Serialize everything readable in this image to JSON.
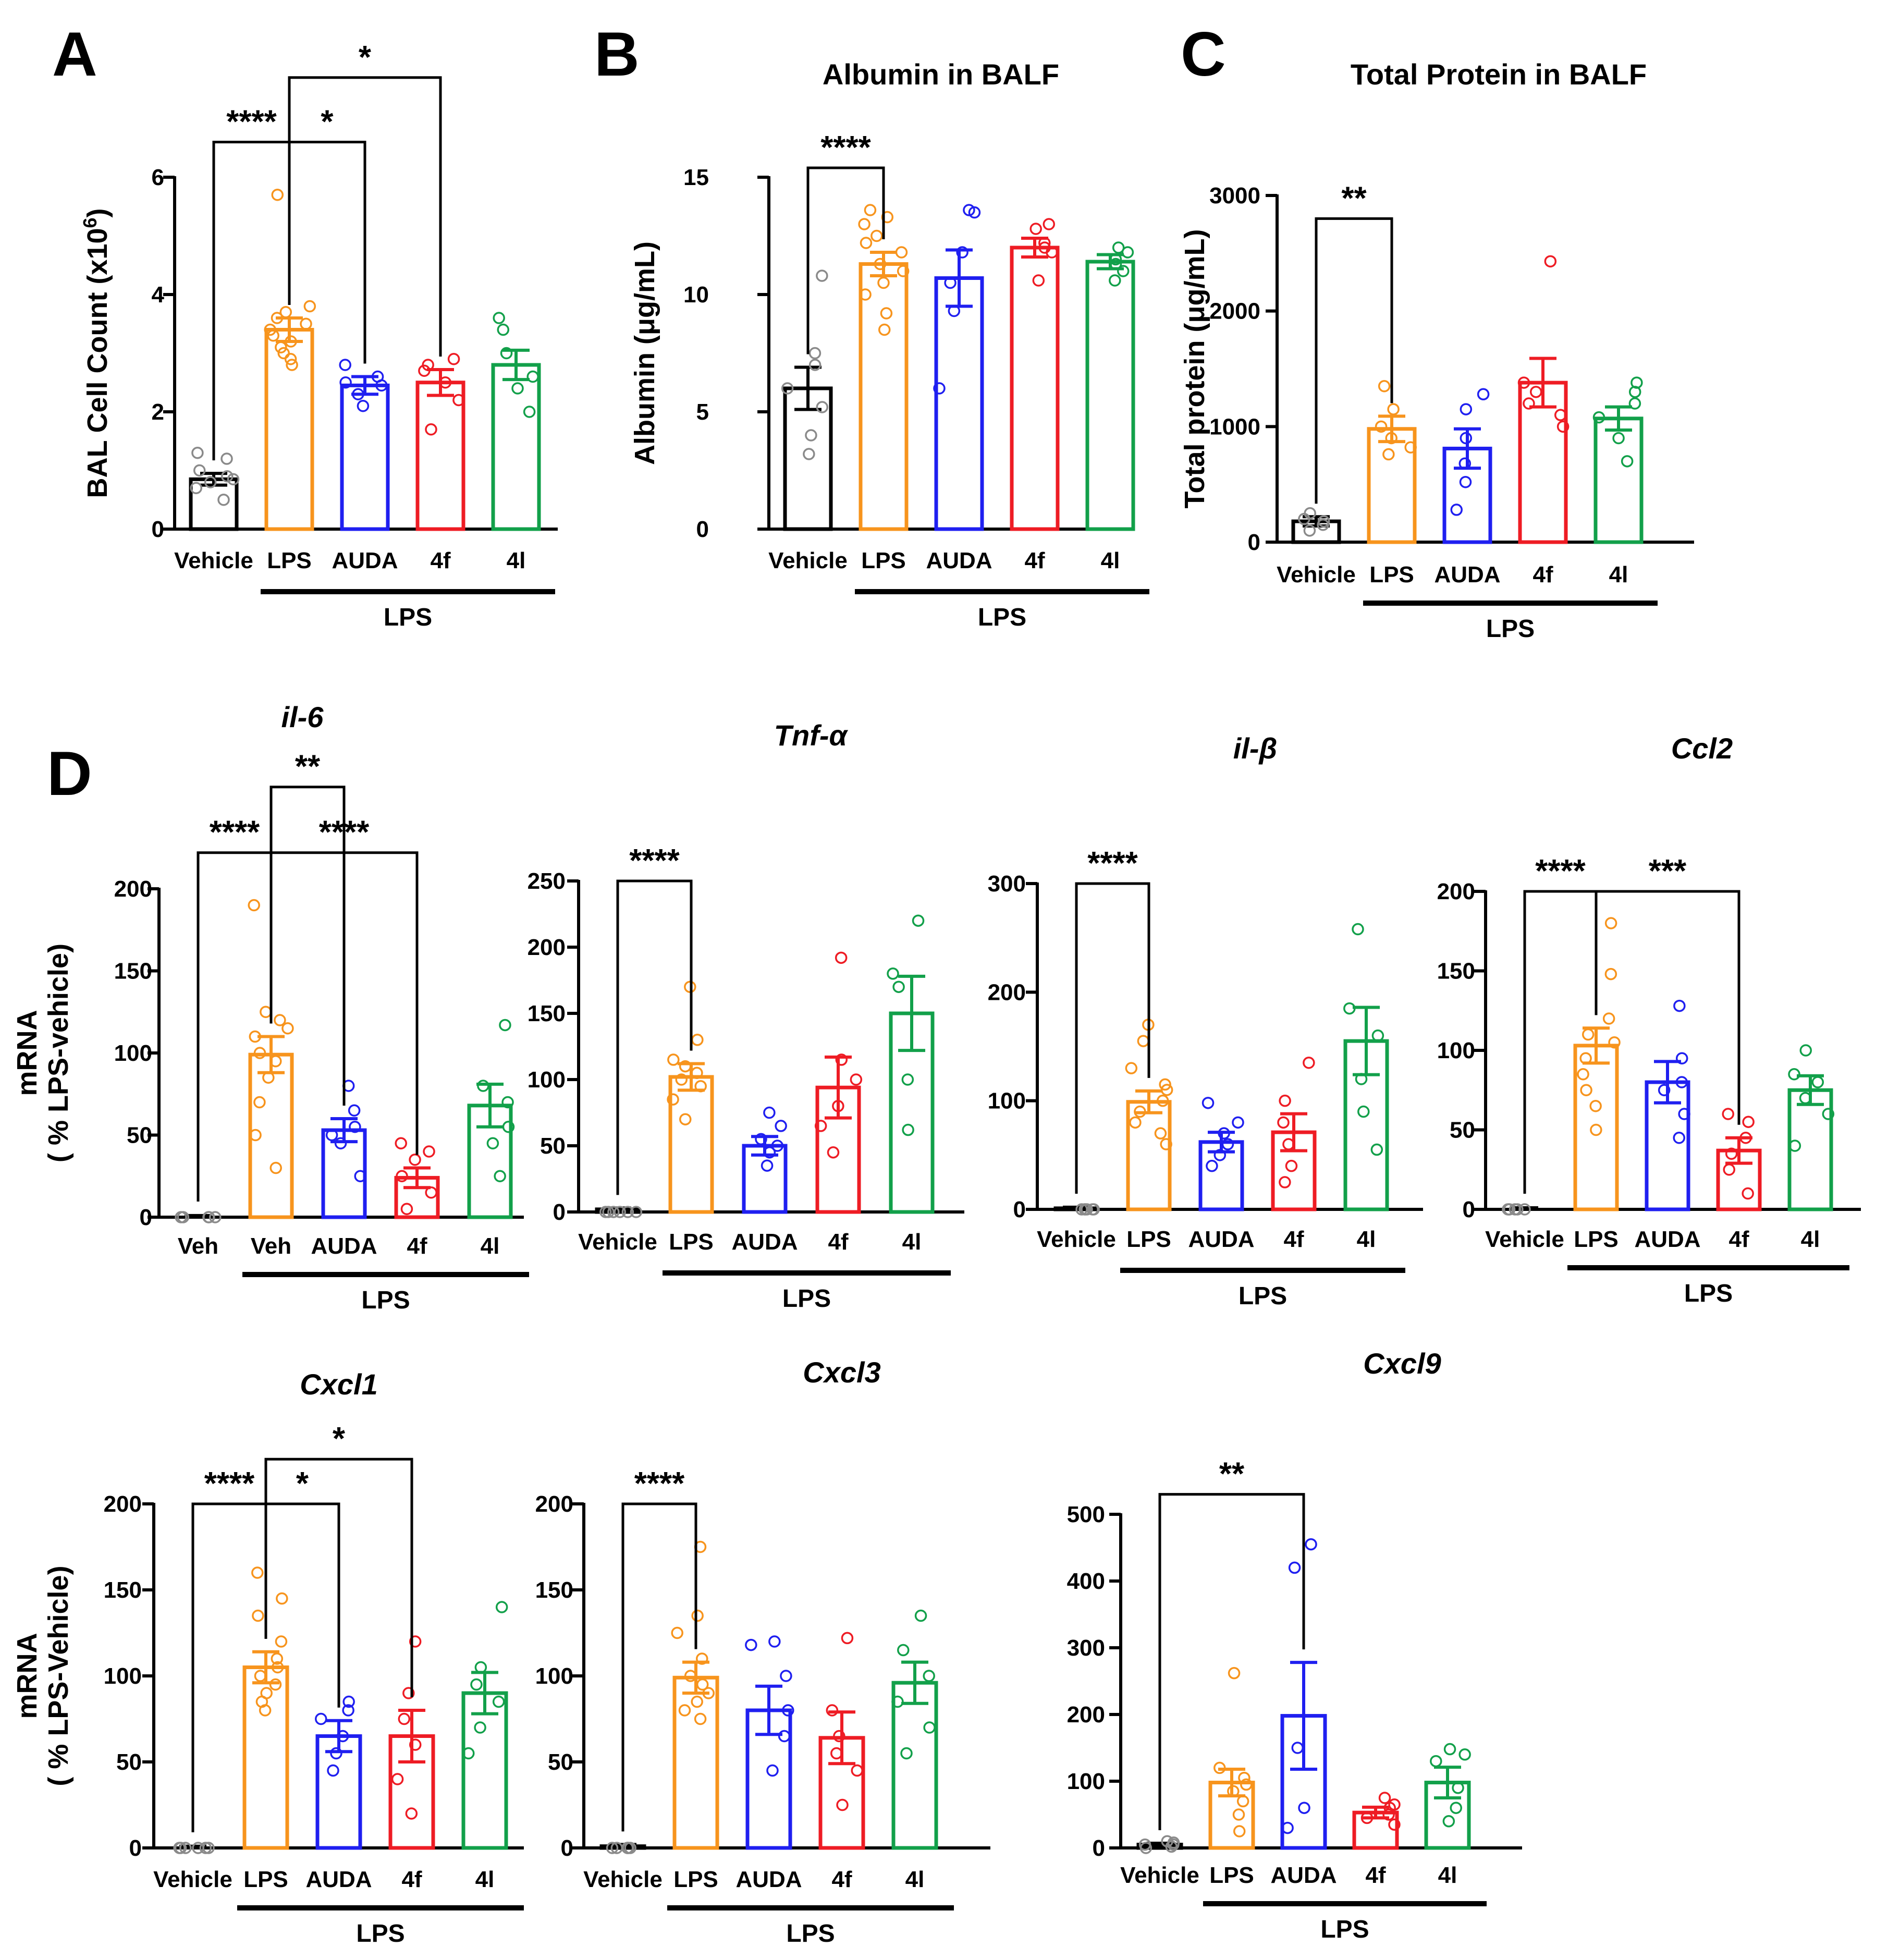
{
  "chart_data": [
    {
      "id": "A",
      "panel_letter": "A",
      "type": "bar",
      "title": "",
      "ylabel": "BAL Cell Count (x10",
      "ylabel_sup": "6",
      "ylabel_close": ")",
      "ylim": [
        0,
        6
      ],
      "yticks": [
        "0",
        "2",
        "4",
        "6"
      ],
      "categories": [
        "Vehicle",
        "LPS",
        "AUDA",
        "4f",
        "4l"
      ],
      "group_label": "LPS",
      "values": [
        0.85,
        3.4,
        2.45,
        2.5,
        2.8
      ],
      "sem": [
        0.1,
        0.2,
        0.15,
        0.22,
        0.25
      ],
      "points": [
        [
          0.5,
          0.7,
          0.8,
          0.9,
          1.0,
          1.2,
          1.3,
          0.85
        ],
        [
          2.8,
          3.0,
          3.1,
          3.2,
          3.3,
          3.4,
          3.5,
          3.6,
          3.7,
          3.8,
          5.7,
          2.9
        ],
        [
          2.1,
          2.3,
          2.45,
          2.5,
          2.6,
          2.8
        ],
        [
          1.7,
          2.2,
          2.5,
          2.7,
          2.8,
          2.9
        ],
        [
          2.0,
          2.4,
          2.6,
          3.0,
          3.4,
          3.6
        ]
      ],
      "significance": [
        {
          "from": 0,
          "to": 1,
          "label": "****",
          "y": 6.6
        },
        {
          "from": 1,
          "to": 2,
          "label": "*",
          "y": 6.6
        },
        {
          "from": 1,
          "to": 3,
          "label": "*",
          "y": 7.7
        }
      ]
    },
    {
      "id": "B",
      "panel_letter": "B",
      "type": "bar",
      "title": "Albumin in BALF",
      "ylabel": "Albumin (μg/mL)",
      "ylim": [
        0,
        15
      ],
      "yticks": [
        "0",
        "5",
        "10",
        "15"
      ],
      "categories": [
        "Vehicle",
        "LPS",
        "AUDA",
        "4f",
        "4l"
      ],
      "group_label": "LPS",
      "values": [
        6.0,
        11.3,
        10.7,
        12.0,
        11.4
      ],
      "sem": [
        0.9,
        0.5,
        1.2,
        0.4,
        0.3
      ],
      "points": [
        [
          3.2,
          4.0,
          5.2,
          6.0,
          7.0,
          7.5,
          10.8
        ],
        [
          8.5,
          9.2,
          10.0,
          10.5,
          11.0,
          11.3,
          11.8,
          12.2,
          12.5,
          13.0,
          13.3,
          13.6
        ],
        [
          6.0,
          9.3,
          10.5,
          11.8,
          13.5,
          13.6
        ],
        [
          10.6,
          11.8,
          12.0,
          12.2,
          12.8,
          13.0
        ],
        [
          10.6,
          11.0,
          11.3,
          11.5,
          11.8,
          12.0
        ]
      ],
      "significance": [
        {
          "from": 0,
          "to": 1,
          "label": "****",
          "y": 15.4
        }
      ]
    },
    {
      "id": "C",
      "panel_letter": "C",
      "type": "bar",
      "title": "Total Protein in BALF",
      "ylabel": "Total  protein  (μg/mL)",
      "ylim": [
        0,
        3000
      ],
      "yticks": [
        "0",
        "1000",
        "2000",
        "3000"
      ],
      "categories": [
        "Vehicle",
        "LPS",
        "AUDA",
        "4f",
        "4l"
      ],
      "group_label": "LPS",
      "values": [
        180,
        980,
        810,
        1380,
        1070
      ],
      "sem": [
        40,
        110,
        170,
        210,
        100
      ],
      "points": [
        [
          100,
          150,
          200,
          250,
          180
        ],
        [
          760,
          820,
          900,
          1000,
          1150,
          1350
        ],
        [
          280,
          520,
          680,
          900,
          1150,
          1280
        ],
        [
          1000,
          1100,
          1200,
          1300,
          1380,
          2430
        ],
        [
          700,
          900,
          1080,
          1200,
          1300,
          1380
        ]
      ],
      "significance": [
        {
          "from": 0,
          "to": 1,
          "label": "**",
          "y": 2800
        }
      ]
    },
    {
      "id": "il6",
      "panel_letter": "D",
      "type": "bar",
      "title": "il-6",
      "ylabel": "mRNA",
      "ylabel2": "( % LPS-vehicle)",
      "ylim": [
        0,
        200
      ],
      "yticks": [
        "0",
        "50",
        "100",
        "150",
        "200"
      ],
      "categories": [
        "Veh",
        "Veh",
        "AUDA",
        "4f",
        "4l"
      ],
      "group_label": "LPS",
      "values": [
        0,
        99,
        53,
        24,
        68
      ],
      "sem": [
        1,
        11,
        7,
        6,
        13
      ],
      "points": [
        [
          0,
          0,
          0,
          0,
          0
        ],
        [
          30,
          50,
          70,
          85,
          95,
          100,
          110,
          115,
          120,
          125,
          190
        ],
        [
          25,
          45,
          50,
          55,
          65,
          80
        ],
        [
          5,
          15,
          25,
          35,
          40,
          45
        ],
        [
          25,
          45,
          55,
          70,
          80,
          117
        ]
      ],
      "significance": [
        {
          "from": 0,
          "to": 1,
          "label": "****",
          "y": 222
        },
        {
          "from": 1,
          "to": 3,
          "label": "****",
          "y": 222
        },
        {
          "from": 1,
          "to": 2,
          "label": "**",
          "y": 262
        }
      ]
    },
    {
      "id": "tnf",
      "type": "bar",
      "title": "Tnf-α",
      "ylim": [
        0,
        250
      ],
      "yticks": [
        "0",
        "50",
        "100",
        "150",
        "200",
        "250"
      ],
      "categories": [
        "Vehicle",
        "LPS",
        "AUDA",
        "4f",
        "4l"
      ],
      "group_label": "LPS",
      "values": [
        2,
        102,
        50,
        94,
        150
      ],
      "sem": [
        1,
        10,
        7,
        23,
        28
      ],
      "points": [
        [
          0,
          0,
          0,
          0,
          0,
          0
        ],
        [
          70,
          85,
          95,
          100,
          105,
          110,
          115,
          130,
          170
        ],
        [
          35,
          45,
          50,
          55,
          65,
          75
        ],
        [
          45,
          65,
          80,
          100,
          115,
          192
        ],
        [
          62,
          100,
          170,
          180,
          220
        ]
      ],
      "significance": [
        {
          "from": 0,
          "to": 1,
          "label": "****",
          "y": 250
        }
      ]
    },
    {
      "id": "il1b",
      "type": "bar",
      "title": "il-β",
      "ylim": [
        0,
        300
      ],
      "yticks": [
        "0",
        "100",
        "200",
        "300"
      ],
      "categories": [
        "Vehicle",
        "LPS",
        "AUDA",
        "4f",
        "4l"
      ],
      "group_label": "LPS",
      "values": [
        1,
        99,
        62,
        71,
        155
      ],
      "sem": [
        1,
        10,
        9,
        17,
        31
      ],
      "points": [
        [
          0,
          0,
          0,
          0,
          0,
          0
        ],
        [
          60,
          70,
          80,
          90,
          100,
          110,
          115,
          130,
          155,
          170
        ],
        [
          40,
          50,
          60,
          70,
          80,
          98
        ],
        [
          25,
          40,
          60,
          80,
          100,
          135
        ],
        [
          55,
          90,
          120,
          160,
          185,
          258
        ]
      ],
      "significance": [
        {
          "from": 0,
          "to": 1,
          "label": "****",
          "y": 300
        }
      ]
    },
    {
      "id": "ccl2",
      "type": "bar",
      "title": "Ccl2",
      "ylim": [
        0,
        200
      ],
      "yticks": [
        "0",
        "50",
        "100",
        "150",
        "200"
      ],
      "categories": [
        "Vehicle",
        "LPS",
        "AUDA",
        "4f",
        "4l"
      ],
      "group_label": "LPS",
      "values": [
        0,
        103,
        80,
        37,
        75
      ],
      "sem": [
        1,
        11,
        13,
        8,
        9
      ],
      "points": [
        [
          0,
          0,
          0,
          0,
          0,
          0
        ],
        [
          50,
          65,
          75,
          85,
          95,
          105,
          110,
          120,
          148,
          180
        ],
        [
          45,
          60,
          75,
          80,
          95,
          128
        ],
        [
          10,
          25,
          35,
          45,
          55,
          60
        ],
        [
          40,
          60,
          70,
          80,
          85,
          100
        ]
      ],
      "significance": [
        {
          "from": 0,
          "to": 1,
          "label": "****",
          "y": 200
        },
        {
          "from": 1,
          "to": 3,
          "label": "***",
          "y": 200
        }
      ]
    },
    {
      "id": "cxcl1",
      "type": "bar",
      "title": "Cxcl1",
      "ylabel": "mRNA",
      "ylabel2": "( % LPS-Vehicle)",
      "ylim": [
        0,
        200
      ],
      "yticks": [
        "0",
        "50",
        "100",
        "150",
        "200"
      ],
      "categories": [
        "Vehicle",
        "LPS",
        "AUDA",
        "4f",
        "4l"
      ],
      "group_label": "LPS",
      "values": [
        0,
        105,
        65,
        65,
        90
      ],
      "sem": [
        1,
        9,
        9,
        15,
        12
      ],
      "points": [
        [
          0,
          0,
          0,
          0,
          0,
          0
        ],
        [
          80,
          85,
          90,
          95,
          100,
          105,
          110,
          120,
          135,
          145,
          160
        ],
        [
          45,
          55,
          65,
          75,
          80,
          85
        ],
        [
          20,
          40,
          60,
          75,
          90,
          120
        ],
        [
          55,
          70,
          85,
          95,
          105,
          140
        ]
      ],
      "significance": [
        {
          "from": 0,
          "to": 1,
          "label": "****",
          "y": 200
        },
        {
          "from": 1,
          "to": 2,
          "label": "*",
          "y": 200
        },
        {
          "from": 1,
          "to": 3,
          "label": "*",
          "y": 226
        }
      ]
    },
    {
      "id": "cxcl3",
      "type": "bar",
      "title": "Cxcl3",
      "ylim": [
        0,
        200
      ],
      "yticks": [
        "0",
        "50",
        "100",
        "150",
        "200"
      ],
      "categories": [
        "Vehicle",
        "LPS",
        "AUDA",
        "4f",
        "4l"
      ],
      "group_label": "LPS",
      "values": [
        1,
        99,
        80,
        64,
        96
      ],
      "sem": [
        1,
        9,
        14,
        15,
        12
      ],
      "points": [
        [
          0,
          0,
          0,
          0,
          0,
          0
        ],
        [
          75,
          80,
          85,
          90,
          95,
          100,
          110,
          125,
          135,
          175
        ],
        [
          45,
          65,
          80,
          100,
          118,
          120
        ],
        [
          25,
          45,
          55,
          65,
          80,
          122
        ],
        [
          55,
          70,
          85,
          100,
          115,
          135
        ]
      ],
      "significance": [
        {
          "from": 0,
          "to": 1,
          "label": "****",
          "y": 200
        }
      ]
    },
    {
      "id": "cxcl9",
      "type": "bar",
      "title": "Cxcl9",
      "ylim": [
        0,
        500
      ],
      "yticks": [
        "0",
        "100",
        "200",
        "300",
        "400",
        "500"
      ],
      "categories": [
        "Vehicle",
        "LPS",
        "AUDA",
        "4f",
        "4l"
      ],
      "group_label": "LPS",
      "values": [
        5,
        98,
        198,
        53,
        98
      ],
      "sem": [
        2,
        20,
        80,
        8,
        23
      ],
      "points": [
        [
          0,
          2,
          5,
          8,
          10,
          5
        ],
        [
          25,
          50,
          70,
          85,
          95,
          105,
          120,
          262
        ],
        [
          30,
          60,
          150,
          420,
          455
        ],
        [
          35,
          45,
          50,
          60,
          65,
          75
        ],
        [
          40,
          60,
          90,
          130,
          140,
          148
        ]
      ],
      "significance": [
        {
          "from": 0,
          "to": 2,
          "label": "**",
          "y": 530
        }
      ]
    }
  ],
  "colors": {
    "axis": "#000000",
    "series": [
      "#000000",
      "#F7941D",
      "#1F1FF0",
      "#EE1C24",
      "#12A04A"
    ],
    "vehicle_points": "#8A8A8A"
  }
}
